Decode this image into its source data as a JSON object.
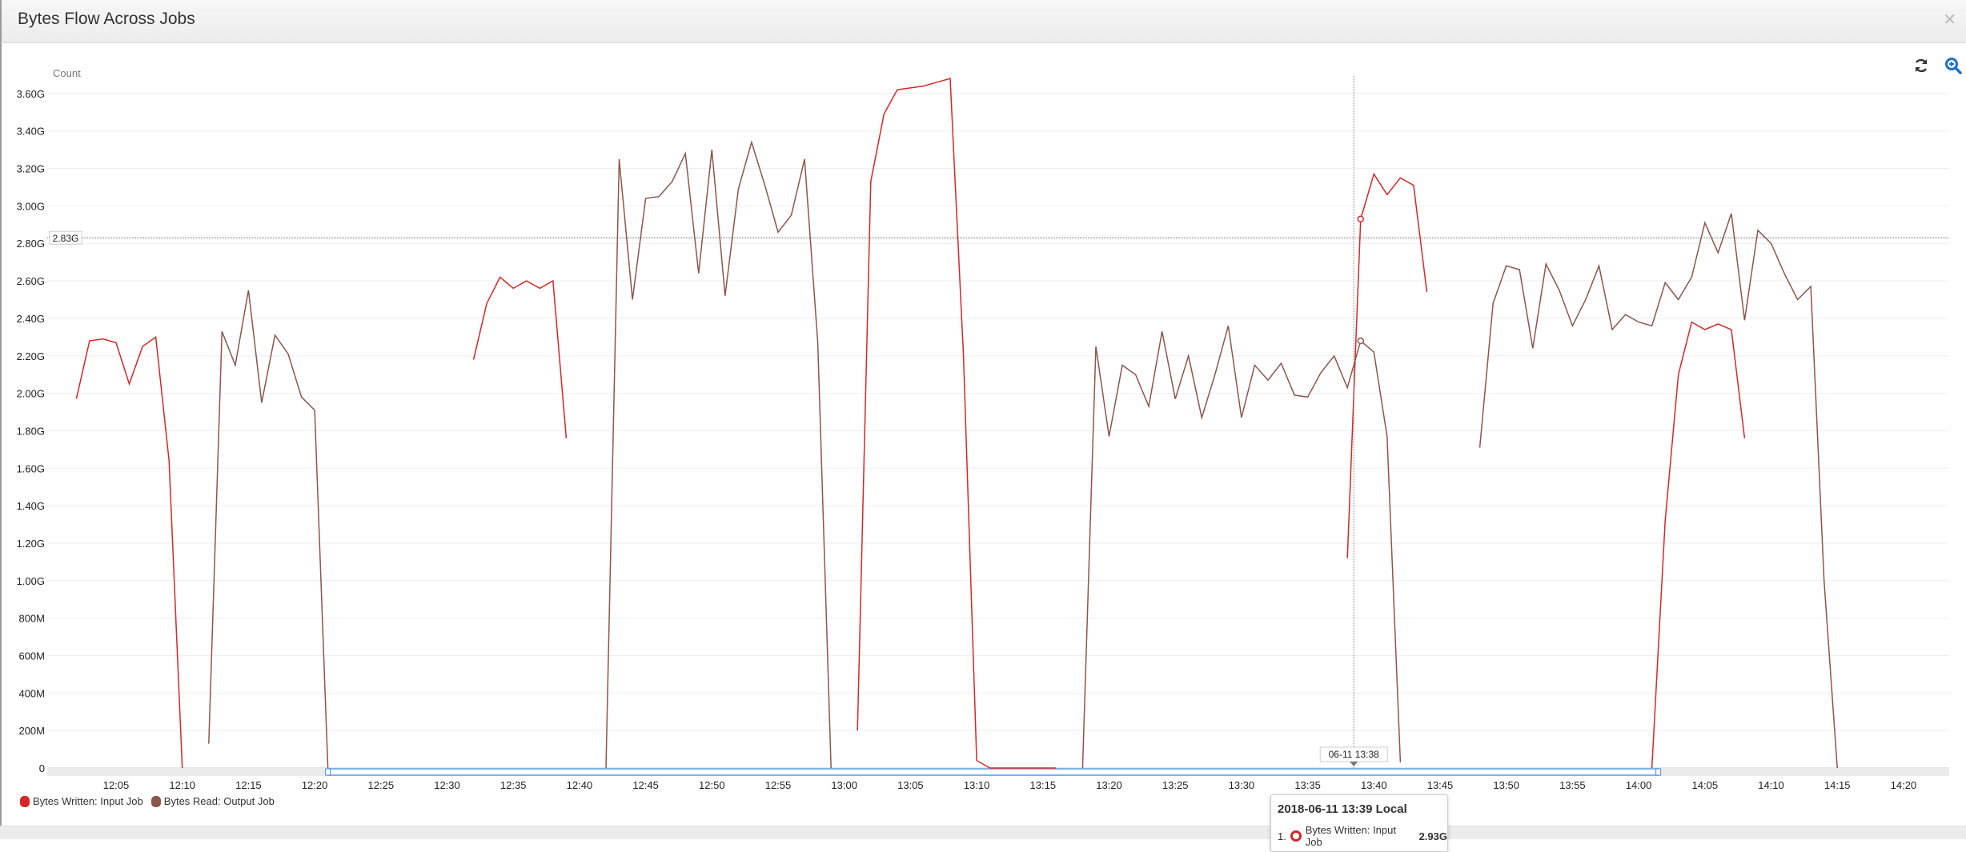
{
  "header": {
    "title": "Bytes Flow Across Jobs",
    "close_icon": "close-icon"
  },
  "toolbar": {
    "refresh_icon": "refresh-icon",
    "zoom_icon": "zoom-in-icon",
    "zoom_color": "#1f6fc5"
  },
  "crosshair": {
    "x_label": "06-11 13:38",
    "y_label": "2.83G",
    "y_value": 2.83
  },
  "tooltip": {
    "title": "2018-06-11 13:39 Local",
    "rows": [
      {
        "index": "1.",
        "series": "Bytes Written: Input Job",
        "value": "2.93G"
      }
    ]
  },
  "chart_data": {
    "type": "line",
    "ylabel": "Count",
    "ylim": [
      0,
      3.7
    ],
    "y_unit": "G",
    "yticks": [
      "0",
      "200M",
      "400M",
      "600M",
      "800M",
      "1.00G",
      "1.20G",
      "1.40G",
      "1.60G",
      "1.80G",
      "2.00G",
      "2.20G",
      "2.40G",
      "2.60G",
      "2.80G",
      "3.00G",
      "3.20G",
      "3.40G",
      "3.60G"
    ],
    "xticks": [
      "12:05",
      "12:10",
      "12:15",
      "12:20",
      "12:25",
      "12:30",
      "12:35",
      "12:40",
      "12:45",
      "12:50",
      "12:55",
      "13:00",
      "13:05",
      "13:10",
      "13:15",
      "13:20",
      "13:25",
      "13:30",
      "13:35",
      "13:40",
      "13:45",
      "13:50",
      "13:55",
      "14:00",
      "14:05",
      "14:10",
      "14:15",
      "14:20"
    ],
    "grid": true,
    "legend": "bottom-left",
    "navigator_range": [
      "12:21",
      "14:01"
    ],
    "series": [
      {
        "name": "Bytes Written: Input Job",
        "color": "#d62728",
        "segments": [
          [
            [
              "12:02",
              1.97
            ],
            [
              "12:03",
              2.28
            ],
            [
              "12:04",
              2.29
            ],
            [
              "12:05",
              2.27
            ],
            [
              "12:06",
              2.05
            ],
            [
              "12:07",
              2.25
            ],
            [
              "12:08",
              2.3
            ],
            [
              "12:09",
              1.64
            ],
            [
              "12:10",
              0
            ]
          ],
          [
            [
              "12:32",
              2.18
            ],
            [
              "12:33",
              2.48
            ],
            [
              "12:34",
              2.62
            ],
            [
              "12:35",
              2.56
            ],
            [
              "12:36",
              2.6
            ],
            [
              "12:37",
              2.56
            ],
            [
              "12:38",
              2.6
            ],
            [
              "12:39",
              1.76
            ]
          ],
          [
            [
              "13:01",
              0.2
            ],
            [
              "13:02",
              3.13
            ],
            [
              "13:03",
              3.49
            ],
            [
              "13:04",
              3.62
            ],
            [
              "13:05",
              3.63
            ],
            [
              "13:06",
              3.64
            ],
            [
              "13:07",
              3.66
            ],
            [
              "13:08",
              3.68
            ],
            [
              "13:09",
              2.2
            ],
            [
              "13:10",
              0.04
            ],
            [
              "13:11",
              0
            ],
            [
              "13:12",
              0
            ],
            [
              "13:13",
              0
            ],
            [
              "13:14",
              0
            ],
            [
              "13:15",
              0
            ],
            [
              "13:16",
              0
            ]
          ],
          [
            [
              "13:38",
              1.12
            ],
            [
              "13:39",
              2.93
            ],
            [
              "13:40",
              3.17
            ],
            [
              "13:41",
              3.06
            ],
            [
              "13:42",
              3.15
            ],
            [
              "13:43",
              3.11
            ],
            [
              "13:44",
              2.54
            ]
          ],
          [
            [
              "14:01",
              0
            ],
            [
              "14:02",
              1.32
            ],
            [
              "14:03",
              2.1
            ],
            [
              "14:04",
              2.38
            ],
            [
              "14:05",
              2.34
            ],
            [
              "14:06",
              2.37
            ],
            [
              "14:07",
              2.34
            ],
            [
              "14:08",
              1.76
            ]
          ]
        ]
      },
      {
        "name": "Bytes Read: Output Job",
        "color": "#8c564b",
        "segments": [
          [
            [
              "12:12",
              0.13
            ],
            [
              "12:13",
              2.33
            ],
            [
              "12:14",
              2.15
            ],
            [
              "12:15",
              2.55
            ],
            [
              "12:16",
              1.95
            ],
            [
              "12:17",
              2.31
            ],
            [
              "12:18",
              2.21
            ],
            [
              "12:19",
              1.98
            ],
            [
              "12:20",
              1.91
            ],
            [
              "12:21",
              0
            ]
          ],
          [
            [
              "12:42",
              0
            ],
            [
              "12:43",
              3.25
            ],
            [
              "12:44",
              2.5
            ],
            [
              "12:45",
              3.04
            ],
            [
              "12:46",
              3.05
            ],
            [
              "12:47",
              3.13
            ],
            [
              "12:48",
              3.28
            ],
            [
              "12:49",
              2.64
            ],
            [
              "12:50",
              3.3
            ],
            [
              "12:51",
              2.52
            ],
            [
              "12:52",
              3.09
            ],
            [
              "12:53",
              3.34
            ],
            [
              "12:54",
              3.11
            ],
            [
              "12:55",
              2.86
            ],
            [
              "12:56",
              2.95
            ],
            [
              "12:57",
              3.25
            ],
            [
              "12:58",
              2.27
            ],
            [
              "12:59",
              0
            ]
          ],
          [
            [
              "13:18",
              0
            ],
            [
              "13:19",
              2.25
            ],
            [
              "13:20",
              1.77
            ],
            [
              "13:21",
              2.15
            ],
            [
              "13:22",
              2.1
            ],
            [
              "13:23",
              1.93
            ],
            [
              "13:24",
              2.33
            ],
            [
              "13:25",
              1.97
            ],
            [
              "13:26",
              2.2
            ],
            [
              "13:27",
              1.87
            ],
            [
              "13:28",
              2.1
            ],
            [
              "13:29",
              2.36
            ],
            [
              "13:30",
              1.87
            ],
            [
              "13:31",
              2.15
            ],
            [
              "13:32",
              2.07
            ],
            [
              "13:33",
              2.16
            ],
            [
              "13:34",
              1.99
            ],
            [
              "13:35",
              1.98
            ],
            [
              "13:36",
              2.11
            ],
            [
              "13:37",
              2.2
            ],
            [
              "13:38",
              2.03
            ],
            [
              "13:39",
              2.28
            ],
            [
              "13:40",
              2.22
            ],
            [
              "13:41",
              1.77
            ],
            [
              "13:42",
              0.03
            ]
          ],
          [
            [
              "13:48",
              1.71
            ],
            [
              "13:49",
              2.48
            ],
            [
              "13:50",
              2.68
            ],
            [
              "13:51",
              2.66
            ],
            [
              "13:52",
              2.24
            ],
            [
              "13:53",
              2.69
            ],
            [
              "13:54",
              2.55
            ],
            [
              "13:55",
              2.36
            ],
            [
              "13:56",
              2.5
            ],
            [
              "13:57",
              2.68
            ],
            [
              "13:58",
              2.34
            ],
            [
              "13:59",
              2.42
            ],
            [
              "14:00",
              2.38
            ],
            [
              "14:01",
              2.36
            ],
            [
              "14:02",
              2.59
            ],
            [
              "14:03",
              2.5
            ],
            [
              "14:04",
              2.62
            ],
            [
              "14:05",
              2.91
            ],
            [
              "14:06",
              2.75
            ],
            [
              "14:07",
              2.96
            ],
            [
              "14:08",
              2.39
            ],
            [
              "14:09",
              2.87
            ],
            [
              "14:10",
              2.8
            ],
            [
              "14:11",
              2.64
            ],
            [
              "14:12",
              2.5
            ],
            [
              "14:13",
              2.57
            ],
            [
              "14:14",
              1.0
            ],
            [
              "14:15",
              0
            ]
          ]
        ]
      }
    ]
  }
}
